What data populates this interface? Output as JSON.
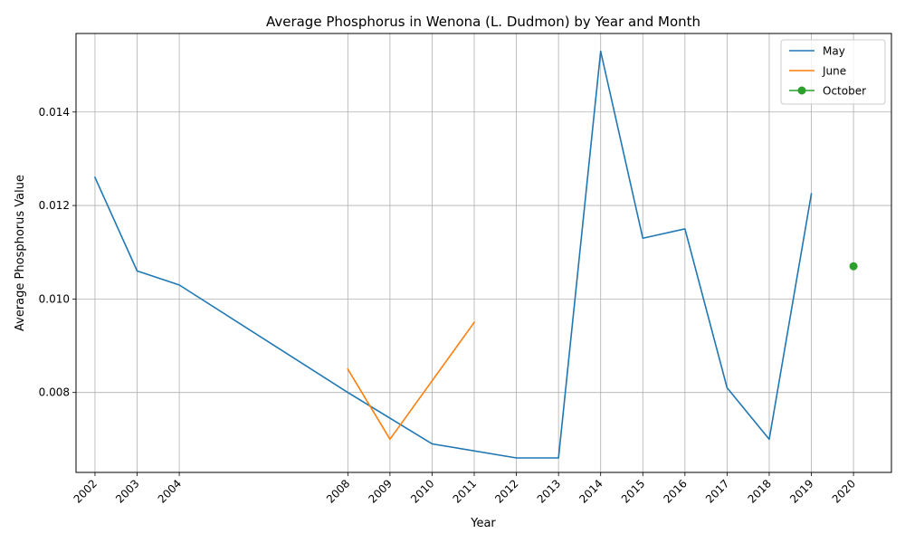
{
  "chart_data": {
    "type": "line",
    "title": "Average Phosphorus in Wenona (L. Dudmon) by Year and Month",
    "xlabel": "Year",
    "ylabel": "Average Phosphorus Value",
    "xlim": [
      2001.55,
      2020.9
    ],
    "ylim": [
      0.00629,
      0.01568
    ],
    "x_ticks": [
      2002,
      2003,
      2004,
      2008,
      2009,
      2010,
      2011,
      2012,
      2013,
      2014,
      2015,
      2016,
      2017,
      2018,
      2019,
      2020
    ],
    "y_ticks": [
      0.008,
      0.01,
      0.012,
      0.014
    ],
    "y_tick_labels": [
      "0.008",
      "0.010",
      "0.012",
      "0.014"
    ],
    "grid": true,
    "legend_position": "top-right",
    "series": [
      {
        "name": "May",
        "color": "#1f77b4",
        "marker": "none",
        "x": [
          2002,
          2003,
          2004,
          2008,
          2010,
          2012,
          2013,
          2014,
          2015,
          2016,
          2017,
          2018,
          2019
        ],
        "y": [
          0.0126,
          0.0106,
          0.0103,
          0.008,
          0.0069,
          0.0066,
          0.0066,
          0.0153,
          0.0113,
          0.0115,
          0.0081,
          0.007,
          0.01225
        ]
      },
      {
        "name": "June",
        "color": "#ff7f0e",
        "marker": "none",
        "x": [
          2008,
          2009,
          2011
        ],
        "y": [
          0.0085,
          0.007,
          0.0095
        ]
      },
      {
        "name": "October",
        "color": "#2ca02c",
        "marker": "circle",
        "x": [
          2020
        ],
        "y": [
          0.0107
        ]
      }
    ]
  }
}
